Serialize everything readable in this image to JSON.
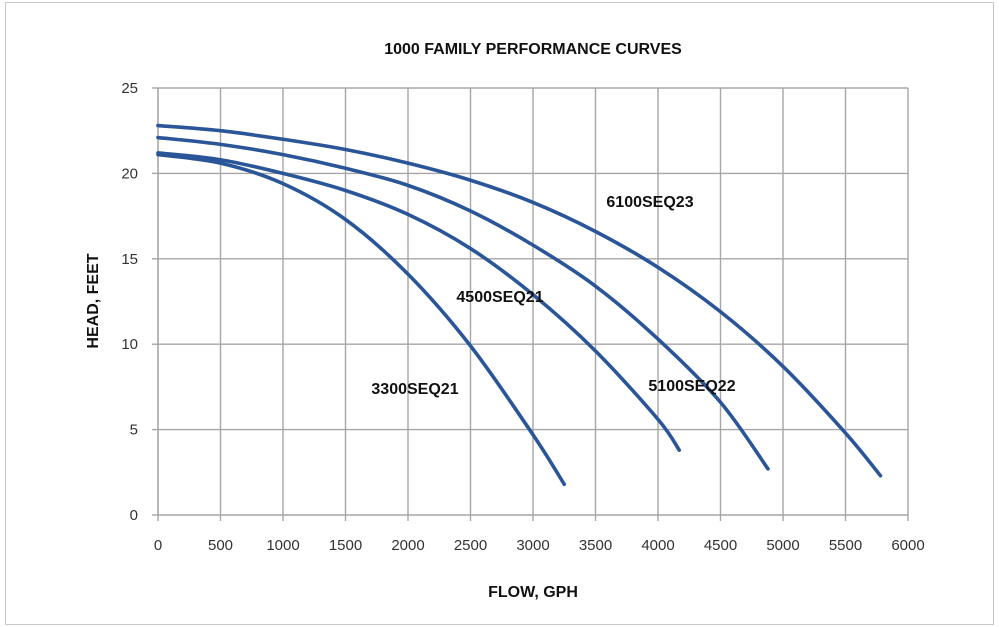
{
  "chart_data": {
    "type": "line",
    "title": "1000 FAMILY PERFORMANCE CURVES",
    "xlabel": "FLOW, GPH",
    "ylabel": "HEAD, FEET",
    "xlim": [
      0,
      6000
    ],
    "ylim": [
      0,
      25
    ],
    "xticks": [
      0,
      500,
      1000,
      1500,
      2000,
      2500,
      3000,
      3500,
      4000,
      4500,
      5000,
      5500,
      6000
    ],
    "yticks": [
      0,
      5,
      10,
      15,
      20,
      25
    ],
    "grid": true,
    "line_color": "#2a5598",
    "grid_color": "#a6a6a6",
    "series": [
      {
        "name": "3300SEQ21",
        "x": [
          0,
          500,
          1000,
          1500,
          2000,
          2500,
          3000,
          3250
        ],
        "y": [
          21.1,
          20.6,
          19.4,
          17.3,
          14.1,
          9.9,
          4.7,
          1.8
        ]
      },
      {
        "name": "4500SEQ21",
        "x": [
          0,
          500,
          1000,
          1500,
          2000,
          2500,
          3000,
          3500,
          4000,
          4170
        ],
        "y": [
          21.2,
          20.8,
          20.0,
          19.0,
          17.6,
          15.6,
          12.9,
          9.6,
          5.6,
          3.8
        ]
      },
      {
        "name": "5100SEQ22",
        "x": [
          0,
          500,
          1000,
          1500,
          2000,
          2500,
          3000,
          3500,
          4000,
          4500,
          4880
        ],
        "y": [
          22.1,
          21.7,
          21.1,
          20.3,
          19.3,
          17.8,
          15.8,
          13.4,
          10.3,
          6.6,
          2.7
        ]
      },
      {
        "name": "6100SEQ23",
        "x": [
          0,
          500,
          1000,
          1500,
          2000,
          2500,
          3000,
          3500,
          4000,
          4500,
          5000,
          5500,
          5780
        ],
        "y": [
          22.8,
          22.5,
          22.0,
          21.4,
          20.6,
          19.6,
          18.3,
          16.6,
          14.5,
          11.9,
          8.7,
          4.8,
          2.3
        ]
      }
    ]
  }
}
